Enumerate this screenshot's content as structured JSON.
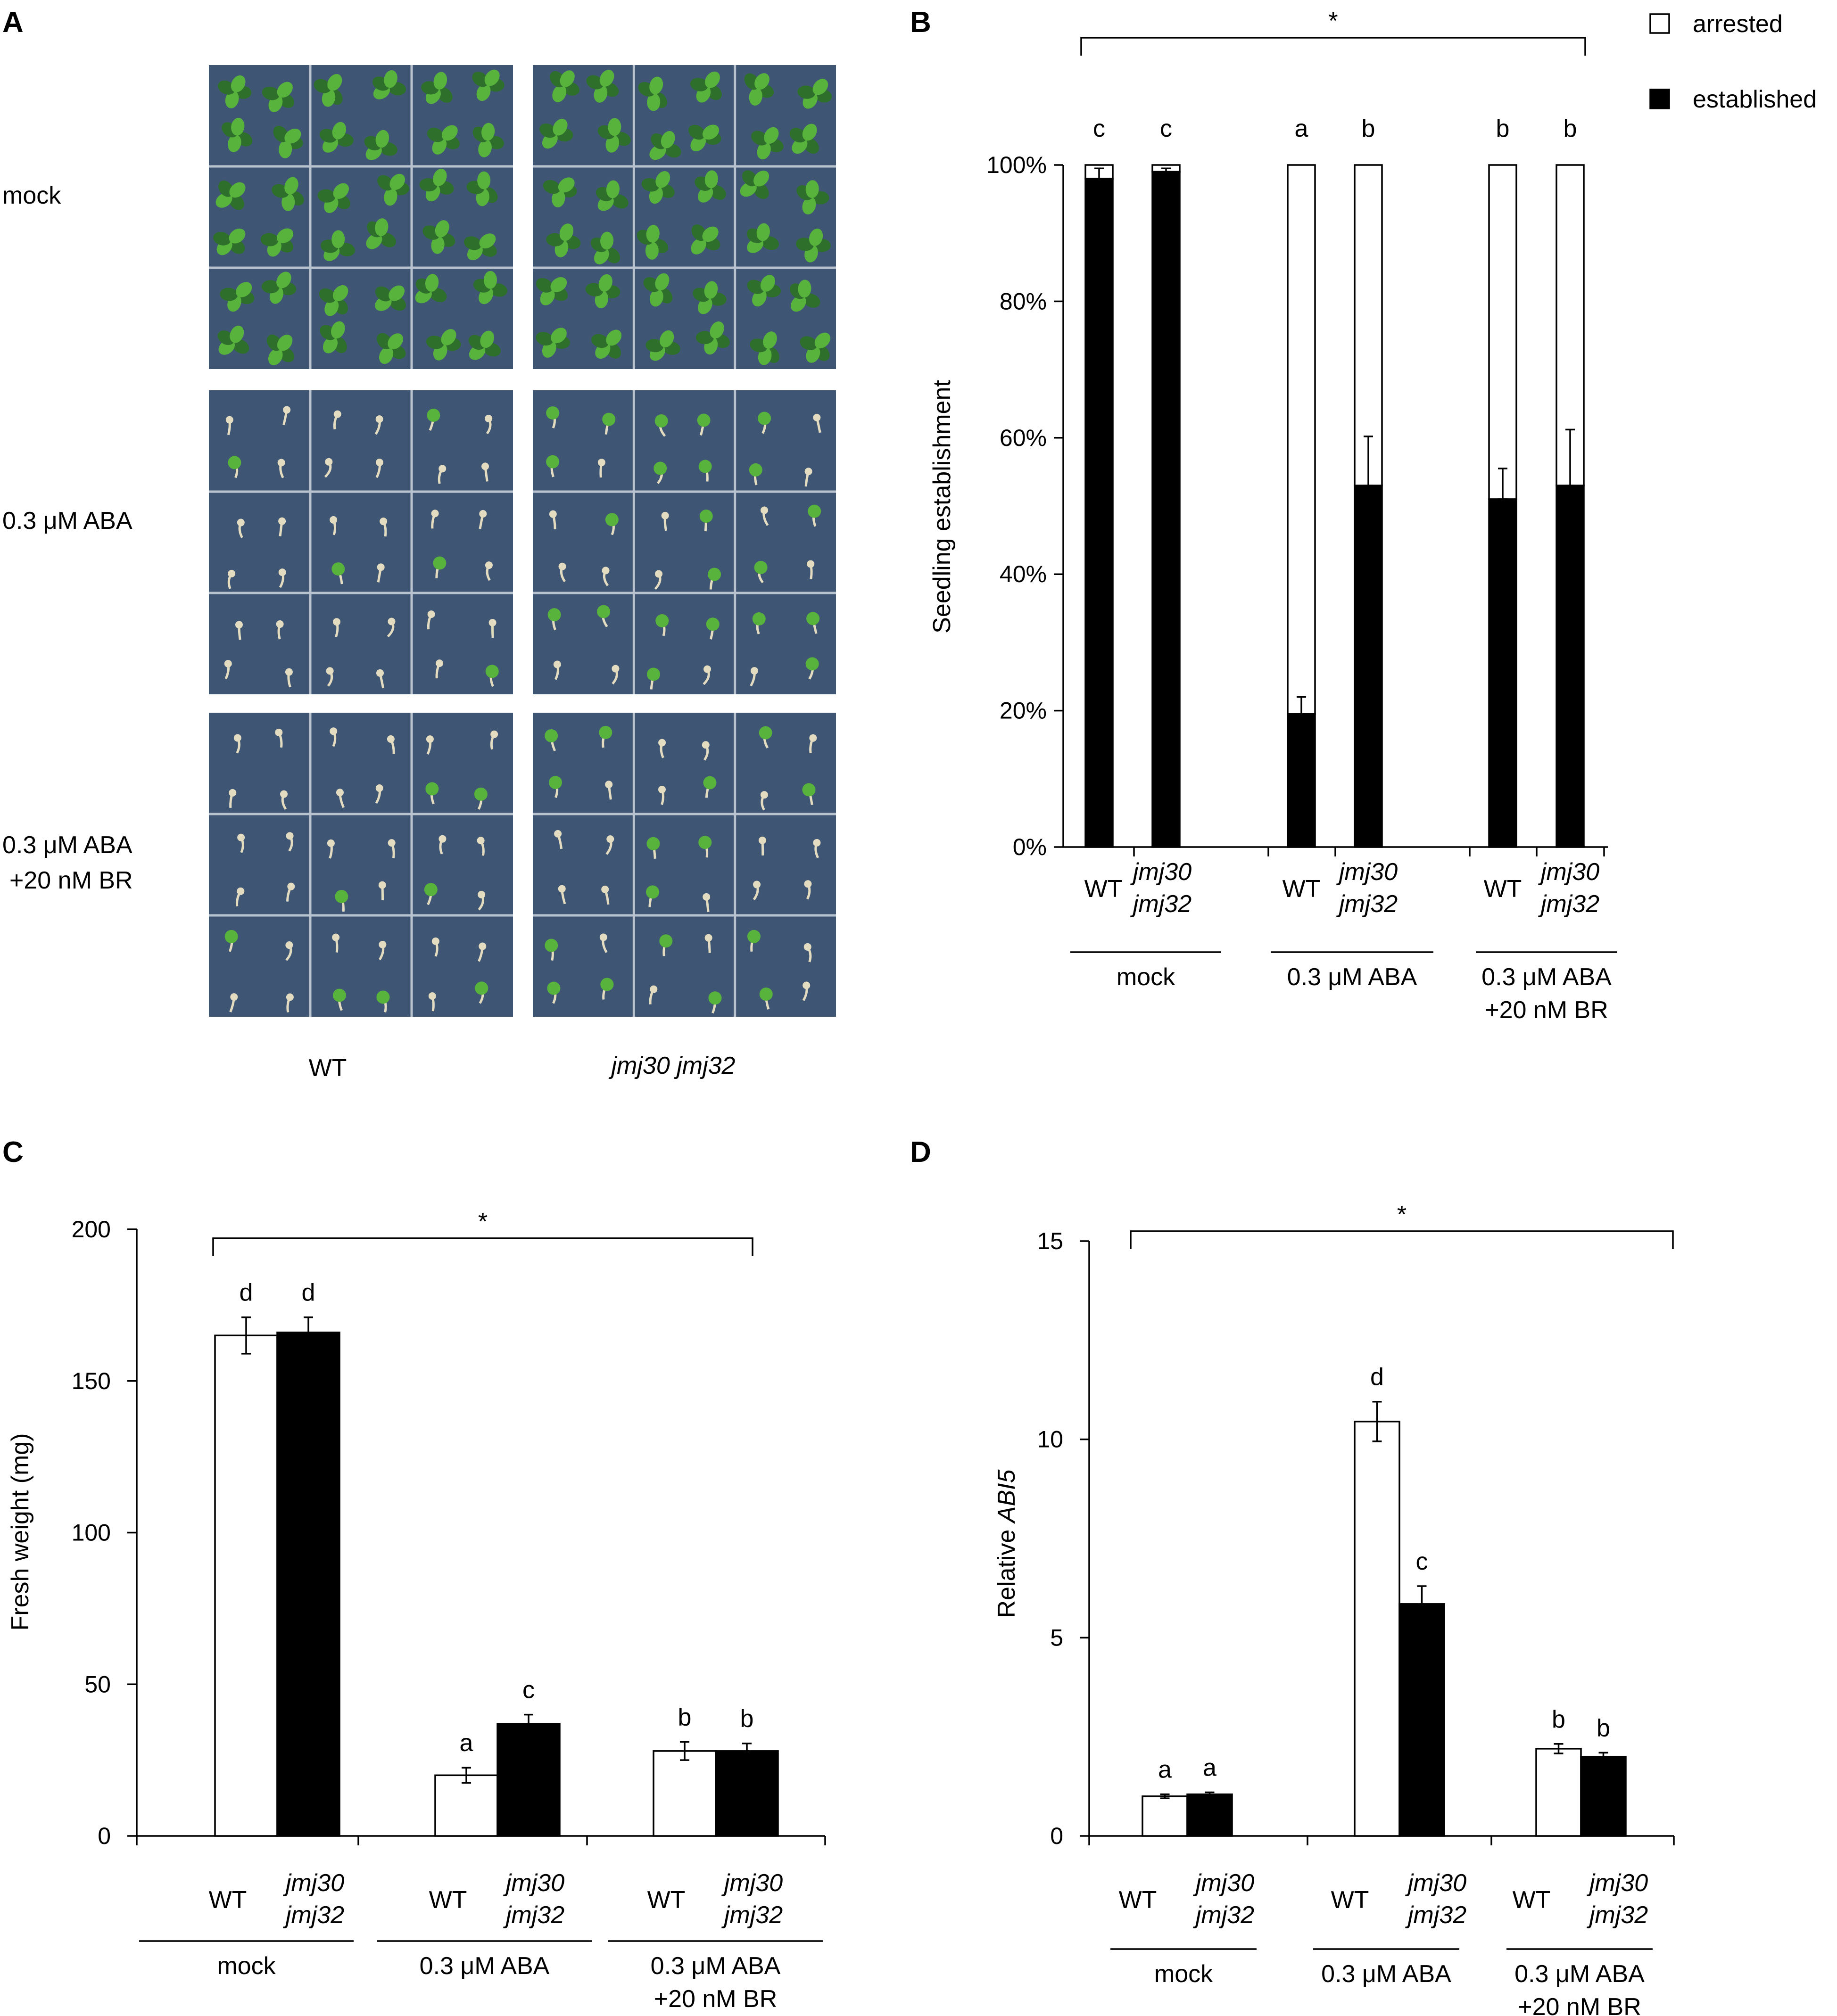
{
  "panel_a": {
    "panel_label": "A",
    "row_labels": [
      {
        "line1": "mock",
        "line2": ""
      },
      {
        "line1": "0.3 μM ABA",
        "line2": ""
      },
      {
        "line1": "0.3 μM ABA",
        "line2": "+20 nM BR"
      }
    ],
    "column_labels": [
      "WT",
      "jmj30 jmj32"
    ],
    "colors": {
      "plate": "#3f5574",
      "grid": "#b9c3cf",
      "plant_green": "#57b33b",
      "dark_green": "#2e6f2c",
      "seedling": "#e4dcc0"
    }
  },
  "panel_b": {
    "panel_label": "B"
  },
  "panel_c": {
    "panel_label": "C"
  },
  "panel_d": {
    "panel_label": "D"
  },
  "chart_data": [
    {
      "id": "B",
      "type": "bar",
      "stacked": true,
      "ylabel": "Seedling establishment",
      "ylim": [
        0,
        100
      ],
      "yticks": [
        "0%",
        "20%",
        "40%",
        "60%",
        "80%",
        "100%"
      ],
      "groups": [
        {
          "name": "mock",
          "name2": ""
        },
        {
          "name": "0.3 μM ABA",
          "name2": ""
        },
        {
          "name": "0.3 μM ABA",
          "name2": "+20 nM BR"
        }
      ],
      "genotype_labels": {
        "wt": "WT",
        "mut1": "jmj30",
        "mut2": "jmj32"
      },
      "legend": [
        {
          "name": "arrested",
          "color": "#ffffff"
        },
        {
          "name": "established",
          "color": "#000000"
        }
      ],
      "legend_position": "top-right",
      "series": [
        {
          "name": "established",
          "values": [
            98,
            99,
            19.5,
            53,
            51,
            53
          ],
          "errors": [
            1.5,
            0.5,
            2.5,
            7.2,
            4.5,
            8.2
          ]
        },
        {
          "name": "arrested",
          "values": [
            2,
            1,
            80.5,
            47,
            49,
            47
          ]
        }
      ],
      "sig_letters": [
        "c",
        "c",
        "a",
        "b",
        "b",
        "b"
      ],
      "bracket_label": "*"
    },
    {
      "id": "C",
      "type": "bar",
      "ylabel": "Fresh weight (mg)",
      "ylim": [
        0,
        200
      ],
      "yticks": [
        "0",
        "50",
        "100",
        "150",
        "200"
      ],
      "groups": [
        {
          "name": "mock",
          "name2": ""
        },
        {
          "name": "0.3 μM ABA",
          "name2": ""
        },
        {
          "name": "0.3 μM ABA",
          "name2": "+20 nM BR"
        }
      ],
      "genotype_labels": {
        "wt": "WT",
        "mut1": "jmj30",
        "mut2": "jmj32"
      },
      "series": [
        {
          "name": "WT",
          "color": "#ffffff",
          "values": [
            165,
            20,
            28
          ],
          "errors": [
            6,
            2.5,
            3
          ]
        },
        {
          "name": "jmj30 jmj32",
          "color": "#000000",
          "values": [
            166,
            37,
            28
          ],
          "errors": [
            5,
            3,
            2.5
          ]
        }
      ],
      "sig_letters": [
        [
          "d",
          "d"
        ],
        [
          "a",
          "c"
        ],
        [
          "b",
          "b"
        ]
      ],
      "bracket_label": "*"
    },
    {
      "id": "D",
      "type": "bar",
      "ylabel_prefix": "Relative ",
      "ylabel_gene": "ABI5",
      "ylim": [
        0,
        15
      ],
      "yticks": [
        "0",
        "5",
        "10",
        "15"
      ],
      "groups": [
        {
          "name": "mock",
          "name2": ""
        },
        {
          "name": "0.3 μM ABA",
          "name2": ""
        },
        {
          "name": "0.3 μM ABA",
          "name2": "+20 nM BR"
        }
      ],
      "genotype_labels": {
        "wt": "WT",
        "mut1": "jmj30",
        "mut2": "jmj32"
      },
      "series": [
        {
          "name": "WT",
          "color": "#ffffff",
          "values": [
            1.0,
            10.45,
            2.2
          ],
          "errors": [
            0.05,
            0.5,
            0.12
          ]
        },
        {
          "name": "jmj30 jmj32",
          "color": "#000000",
          "values": [
            1.05,
            5.85,
            2.0
          ],
          "errors": [
            0.05,
            0.45,
            0.1
          ]
        }
      ],
      "sig_letters": [
        [
          "a",
          "a"
        ],
        [
          "d",
          "c"
        ],
        [
          "b",
          "b"
        ]
      ],
      "bracket_label": "*"
    }
  ]
}
